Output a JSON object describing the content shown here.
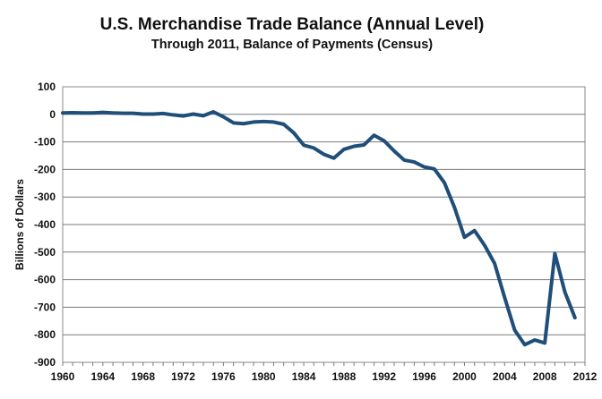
{
  "chart_data": {
    "type": "line",
    "title": "U.S. Merchandise Trade Balance (Annual Level)",
    "subtitle": "Through 2011, Balance of Payments (Census)",
    "xlabel": "",
    "ylabel": "Billions of Dollars",
    "xlim": [
      1960,
      2012
    ],
    "ylim": [
      -900,
      100
    ],
    "x_ticks": [
      1960,
      1964,
      1968,
      1972,
      1976,
      1980,
      1984,
      1988,
      1992,
      1996,
      2000,
      2004,
      2008,
      2012
    ],
    "y_ticks": [
      100,
      0,
      -100,
      -200,
      -300,
      -400,
      -500,
      -600,
      -700,
      -800,
      -900
    ],
    "grid": "horizontal",
    "line_color": "#1f4e79",
    "series": [
      {
        "x": [
          1960,
          1961,
          1962,
          1963,
          1964,
          1965,
          1966,
          1967,
          1968,
          1969,
          1970,
          1971,
          1972,
          1973,
          1974,
          1975,
          1976,
          1977,
          1978,
          1979,
          1980,
          1981,
          1982,
          1983,
          1984,
          1985,
          1986,
          1987,
          1988,
          1989,
          1990,
          1991,
          1992,
          1993,
          1994,
          1995,
          1996,
          1997,
          1998,
          1999,
          2000,
          2001,
          2002,
          2003,
          2004,
          2005,
          2006,
          2007,
          2008,
          2009,
          2010,
          2011
        ],
        "values": [
          5,
          6,
          5,
          5,
          7,
          5,
          4,
          4,
          1,
          1,
          3,
          -2,
          -6,
          1,
          -5,
          9,
          -9,
          -31,
          -34,
          -28,
          -26,
          -28,
          -36,
          -67,
          -112,
          -122,
          -145,
          -159,
          -127,
          -116,
          -111,
          -76,
          -96,
          -133,
          -166,
          -173,
          -191,
          -198,
          -248,
          -337,
          -446,
          -422,
          -475,
          -541,
          -665,
          -783,
          -836,
          -819,
          -830,
          -505,
          -645,
          -738
        ]
      }
    ]
  }
}
